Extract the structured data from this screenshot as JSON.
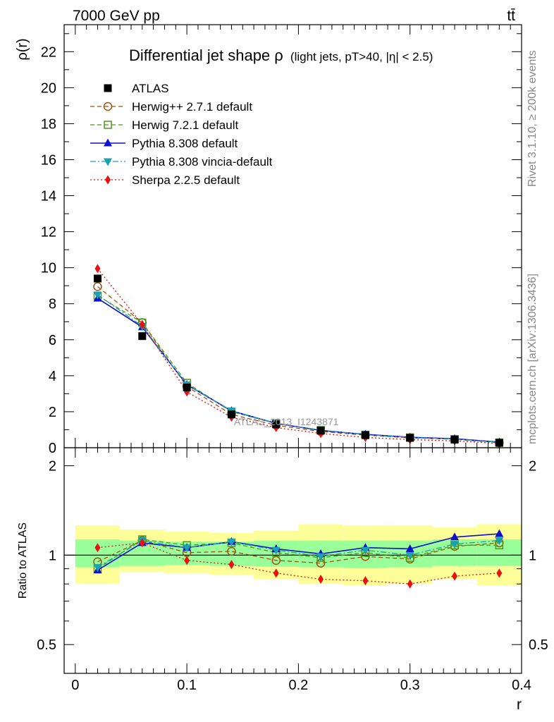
{
  "header": {
    "beam_label": "7000 GeV pp",
    "process_label": "tt̄"
  },
  "side_labels": {
    "rivet": "Rivet 3.1.10, ≥ 200k events",
    "mcplots": "mcplots.cern.ch [arXiv:1306.3436]"
  },
  "chart_data": [
    {
      "type": "line",
      "panel": "main",
      "title_main": "Differential jet shape ρ",
      "title_cuts": "(light jets, pT>40, |η| < 2.5)",
      "ylabel": "ρ(r)",
      "watermark": "ATLAS_2013_I1243871",
      "xlim": [
        -0.01,
        0.4
      ],
      "ylim": [
        0,
        23.5
      ],
      "yticks": [
        0,
        2,
        4,
        6,
        8,
        10,
        12,
        14,
        16,
        18,
        20,
        22
      ],
      "x": [
        0.02,
        0.06,
        0.1,
        0.14,
        0.18,
        0.22,
        0.26,
        0.3,
        0.34,
        0.38
      ],
      "series": [
        {
          "name": "ATLAS",
          "color": "#000000",
          "marker": "square-filled",
          "line": "none",
          "values": [
            9.4,
            6.2,
            3.35,
            1.85,
            1.3,
            0.95,
            0.7,
            0.55,
            0.45,
            0.27
          ]
        },
        {
          "name": "Herwig++ 2.7.1 default",
          "color": "#a0520f",
          "marker": "circle-open",
          "line": "dashed",
          "values": [
            8.95,
            6.95,
            3.4,
            1.85,
            1.25,
            0.9,
            0.7,
            0.55,
            0.47,
            0.28
          ]
        },
        {
          "name": "Herwig 7.2.1 default",
          "color": "#4c9a1a",
          "marker": "square-open",
          "line": "dashed",
          "values": [
            8.45,
            6.95,
            3.6,
            2.0,
            1.35,
            0.98,
            0.72,
            0.57,
            0.48,
            0.29
          ]
        },
        {
          "name": "Pythia 8.308 default",
          "color": "#1010cc",
          "marker": "triangle-up",
          "line": "solid",
          "values": [
            8.3,
            6.7,
            3.5,
            2.05,
            1.35,
            0.96,
            0.74,
            0.58,
            0.5,
            0.31
          ]
        },
        {
          "name": "Pythia 8.308 vincia-default",
          "color": "#1aa0b0",
          "marker": "triangle-down",
          "line": "dashdot",
          "values": [
            8.5,
            6.75,
            3.5,
            2.05,
            1.35,
            0.98,
            0.73,
            0.57,
            0.49,
            0.3
          ]
        },
        {
          "name": "Sherpa 2.2.5 default",
          "color": "#e81010",
          "marker": "diamond",
          "line": "dotted",
          "values": [
            9.95,
            6.85,
            3.1,
            1.7,
            1.12,
            0.79,
            0.57,
            0.45,
            0.38,
            0.24
          ]
        }
      ]
    },
    {
      "type": "line",
      "panel": "ratio",
      "ylabel": "Ratio to ATLAS",
      "xlabel": "r",
      "xlim": [
        -0.01,
        0.4
      ],
      "ylim": [
        0.4,
        2.3
      ],
      "yticks": [
        0.5,
        1,
        2
      ],
      "xticks": [
        0,
        0.1,
        0.2,
        0.3,
        0.4
      ],
      "x": [
        0.02,
        0.06,
        0.1,
        0.14,
        0.18,
        0.22,
        0.26,
        0.3,
        0.34,
        0.38
      ],
      "bands": {
        "x_edges": [
          0,
          0.04,
          0.08,
          0.12,
          0.16,
          0.2,
          0.24,
          0.28,
          0.32,
          0.36,
          0.4
        ],
        "stat_low": [
          0.91,
          0.92,
          0.925,
          0.92,
          0.915,
          0.91,
          0.905,
          0.91,
          0.92,
          0.92
        ],
        "stat_high": [
          1.13,
          1.12,
          1.11,
          1.11,
          1.12,
          1.12,
          1.12,
          1.12,
          1.13,
          1.13
        ],
        "total_low": [
          0.8,
          0.88,
          0.87,
          0.86,
          0.83,
          0.8,
          0.79,
          0.8,
          0.83,
          0.79
        ],
        "total_high": [
          1.26,
          1.22,
          1.2,
          1.19,
          1.21,
          1.27,
          1.26,
          1.26,
          1.24,
          1.27
        ],
        "stat_color": "#99ff99",
        "total_color": "#ffff99"
      },
      "series": [
        {
          "name": "Herwig++ 2.7.1 default",
          "color": "#a0520f",
          "marker": "circle-open",
          "line": "dashed",
          "values": [
            0.95,
            1.12,
            1.02,
            1.03,
            0.96,
            0.94,
            0.99,
            0.97,
            1.07,
            1.1
          ]
        },
        {
          "name": "Herwig 7.2.1 default",
          "color": "#4c9a1a",
          "marker": "square-open",
          "line": "dashed",
          "values": [
            0.9,
            1.13,
            1.08,
            1.1,
            1.02,
            0.98,
            1.02,
            0.98,
            1.08,
            1.08
          ]
        },
        {
          "name": "Pythia 8.308 default",
          "color": "#1010cc",
          "marker": "triangle-up",
          "line": "solid",
          "values": [
            0.89,
            1.1,
            1.06,
            1.11,
            1.05,
            1.01,
            1.06,
            1.05,
            1.15,
            1.18
          ]
        },
        {
          "name": "Pythia 8.308 vincia-default",
          "color": "#1aa0b0",
          "marker": "triangle-down",
          "line": "dashdot",
          "values": [
            0.91,
            1.12,
            1.06,
            1.11,
            1.04,
            0.99,
            1.04,
            1.0,
            1.09,
            1.12
          ]
        },
        {
          "name": "Sherpa 2.2.5 default",
          "color": "#e81010",
          "marker": "diamond",
          "line": "dotted",
          "values": [
            1.06,
            1.1,
            0.96,
            0.93,
            0.87,
            0.83,
            0.82,
            0.8,
            0.85,
            0.87
          ]
        }
      ]
    }
  ]
}
